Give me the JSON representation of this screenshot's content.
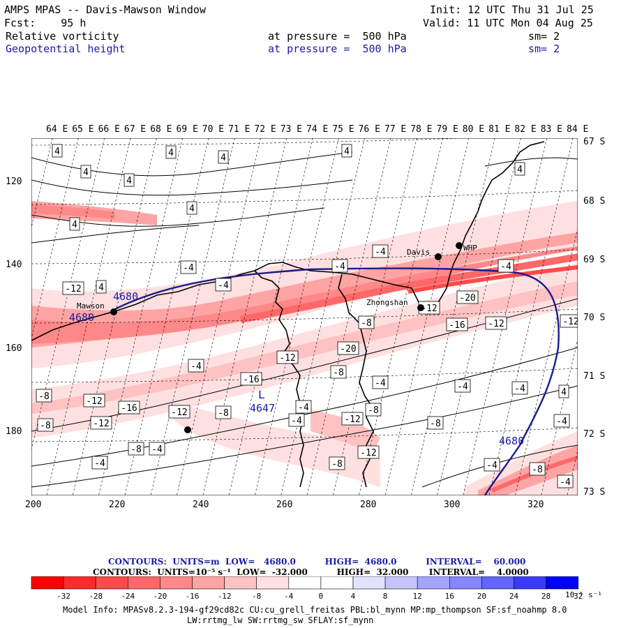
{
  "header": {
    "title": "AMPS MPAS -- Davis-Mawson Window",
    "init": "Init: 12 UTC Thu 31 Jul 25",
    "fcst": "Fcst:    95 h",
    "valid": "Valid: 11 UTC Mon 04 Aug 25",
    "field1": {
      "name": "Relative vorticity",
      "level": "at pressure =  500 hPa",
      "sm": "sm= 2"
    },
    "field2": {
      "name": "Geopotential height",
      "level": "at pressure =  500 hPa",
      "sm": "sm= 2"
    }
  },
  "map": {
    "lon_labels": [
      "64 E",
      "65 E",
      "66 E",
      "67 E",
      "68 E",
      "69 E",
      "70 E",
      "71 E",
      "72 E",
      "73 E",
      "74 E",
      "75 E",
      "76 E",
      "77 E",
      "78 E",
      "79 E",
      "80 E",
      "81 E",
      "82 E",
      "83 E",
      "84 E"
    ],
    "lat_labels": [
      "67 S",
      "68 S",
      "69 S",
      "70 S",
      "71 S",
      "72 S",
      "73 S"
    ],
    "x_ticks": [
      "200",
      "220",
      "240",
      "260",
      "280",
      "300",
      "320"
    ],
    "y_ticks": [
      "120",
      "140",
      "160",
      "180"
    ],
    "stations": [
      {
        "name": "Davis"
      },
      {
        "name": "WHP"
      },
      {
        "name": "Mawson"
      },
      {
        "name": "Zhongshan"
      }
    ],
    "height_labels": [
      "4680",
      "4680",
      "4680",
      "4647"
    ],
    "low_marker": "L",
    "vorticity_labels": [
      "4",
      "4",
      "4",
      "4",
      "4",
      "4",
      "4",
      "4",
      "4",
      "-4",
      "-4",
      "-4",
      "-4",
      "-4",
      "-4",
      "-4",
      "-4",
      "-4",
      "-4",
      "-4",
      "-4",
      "-4",
      "-4",
      "-4",
      "-8",
      "-8",
      "-8",
      "-8",
      "-8",
      "-8",
      "-8",
      "-8",
      "-8",
      "-8",
      "-12",
      "-12",
      "-12",
      "-12",
      "-12",
      "-12",
      "-12",
      "-12",
      "-12",
      "-12",
      "-16",
      "-16",
      "-16",
      "-20",
      "-20",
      "4",
      "-4",
      "4"
    ]
  },
  "contours_line1": "CONTOURS:  UNITS=m  LOW=   4680.0          HIGH=  4680.0          INTERVAL=    60.000",
  "contours_line2": "CONTOURS:  UNITS=10⁻⁵ s⁻¹  LOW=  -32.000          HIGH=  32.000       INTERVAL=    4.0000",
  "colorbar": {
    "labels": [
      "-32",
      "-28",
      "-24",
      "-20",
      "-16",
      "-12",
      "-8",
      "-4",
      "0",
      "4",
      "8",
      "12",
      "16",
      "20",
      "24",
      "28",
      "32"
    ],
    "unit": "10⁻⁵ s⁻¹",
    "colors": [
      "#ff0000",
      "#ff2a2a",
      "#ff4a4a",
      "#ff6868",
      "#ff8888",
      "#ffa4a4",
      "#ffc2c2",
      "#ffe0e0",
      "#ffffff",
      "#ffffff",
      "#e2e2ff",
      "#c4c4ff",
      "#a4a4ff",
      "#8686ff",
      "#6464ff",
      "#3a3aff",
      "#0000ff"
    ]
  },
  "footer": {
    "line1": "Model Info: MPASv8.2.3-194-gf29cd82c CU:cu_grell_freitas PBL:bl_mynn MP:mp_thompson SF:sf_noahmp 8.0",
    "line2": "LW:rrtmg_lw SW:rrtmg_sw SFLAY:sf_mynn"
  }
}
